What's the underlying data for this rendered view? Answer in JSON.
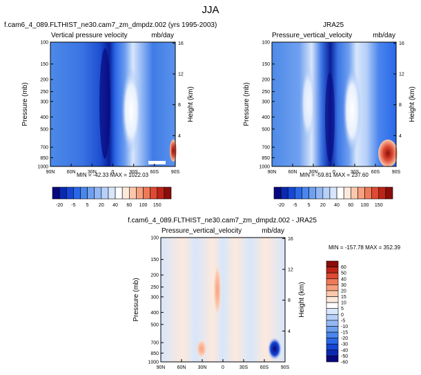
{
  "page_title": "JJA",
  "colors": {
    "panel_colors_top": [
      "#08087e",
      "#0a28b0",
      "#1546d4",
      "#2a68e8",
      "#4a86ee",
      "#6fa0f0",
      "#94b8f4",
      "#b7d0f8",
      "#d7e6fb",
      "#ffffff",
      "#fde9dc",
      "#fbc8ad",
      "#f6a07f",
      "#ee7a5a",
      "#de4a33",
      "#bd2418",
      "#8b0d0a"
    ],
    "panel_colors_diff": [
      "#08087e",
      "#0a28b0",
      "#1546d4",
      "#2a68e8",
      "#4a86ee",
      "#6fa0f0",
      "#94b8f4",
      "#b7d0f8",
      "#d7e6fb",
      "#ffffff",
      "#fde9dc",
      "#fbc8ad",
      "#f6a07f",
      "#ee7a5a",
      "#de4a33",
      "#bd2418",
      "#8b0d0a"
    ]
  },
  "chart_data": [
    {
      "type": "heatmap",
      "title": "f.cam6_4_089.FLTHIST_ne30.cam7_zm_dmpdz.002 (yrs 1995-2003)",
      "left_title": "Vertical pressure velocity",
      "right_title": "mb/day",
      "ylabel": "Pressure (mb)",
      "ylabel_right": "Height (km)",
      "x_ticks": [
        "90N",
        "60N",
        "30N",
        "0",
        "30S",
        "60S",
        "90S"
      ],
      "y_ticks": [
        "100",
        "150",
        "200",
        "250",
        "300",
        "400",
        "500",
        "700",
        "850",
        "1000"
      ],
      "y_ticks_right": [
        "16",
        "12",
        "8",
        "4"
      ],
      "min_max": "MIN = -42.33  MAX = 1022.03"
    },
    {
      "type": "heatmap",
      "title": "JRA25",
      "left_title": "Pressure_vertical_velocity",
      "right_title": "mb/day",
      "ylabel": "Pressure (mb)",
      "ylabel_right": "Height (km)",
      "x_ticks": [
        "90N",
        "60N",
        "30N",
        "0",
        "30S",
        "60S",
        "90S"
      ],
      "y_ticks": [
        "100",
        "150",
        "200",
        "250",
        "300",
        "400",
        "500",
        "700",
        "850",
        "1000"
      ],
      "y_ticks_right": [
        "16",
        "12",
        "8",
        "4"
      ],
      "min_max": "MIN = -59.81  MAX = 237.60"
    },
    {
      "type": "heatmap",
      "title": "f.cam6_4_089.FLTHIST_ne30.cam7_zm_dmpdz.002 - JRA25",
      "left_title": "Pressure_vertical_velocity",
      "right_title": "mb/day",
      "ylabel": "Pressure (mb)",
      "ylabel_right": "Height (km)",
      "x_ticks": [
        "90N",
        "60N",
        "30N",
        "0",
        "30S",
        "60S",
        "90S"
      ],
      "y_ticks": [
        "100",
        "150",
        "200",
        "250",
        "300",
        "400",
        "500",
        "700",
        "850",
        "1000"
      ],
      "y_ticks_right": [
        "16",
        "12",
        "8",
        "4"
      ],
      "min_max": "MIN = -157.78  MAX = 352.39"
    }
  ],
  "colorbar_top": {
    "labels": [
      "-20",
      "-5",
      "5",
      "20",
      "40",
      "60",
      "100",
      "150"
    ]
  },
  "colorbar_diff": {
    "labels": [
      "60",
      "50",
      "40",
      "30",
      "20",
      "15",
      "10",
      "5",
      "0",
      "-5",
      "-10",
      "-15",
      "-20",
      "-30",
      "-40",
      "-50",
      "-60"
    ]
  }
}
